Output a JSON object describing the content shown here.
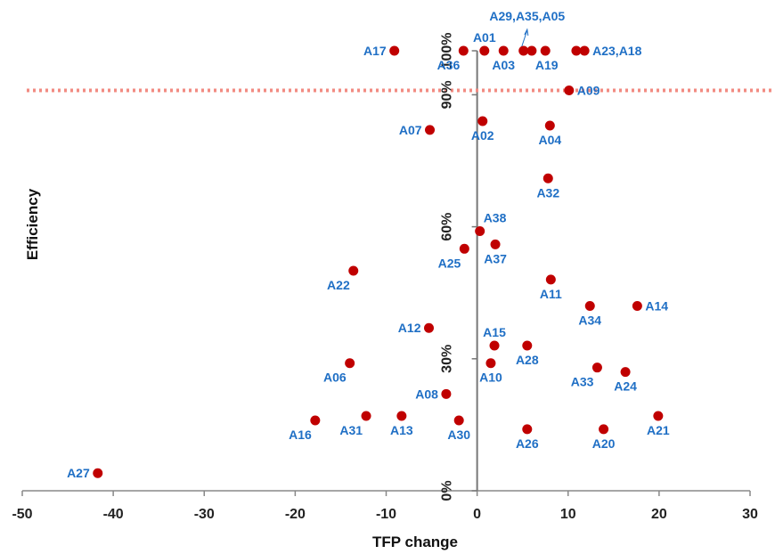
{
  "chart_data": {
    "type": "scatter",
    "xlabel": "TFP change",
    "ylabel": "Efficiency",
    "xlim": [
      -50,
      30
    ],
    "ylim": [
      0,
      100
    ],
    "x_ticks": [
      "-50",
      "-40",
      "-30",
      "-20",
      "-10",
      "0",
      "10",
      "20",
      "30"
    ],
    "y_ticks": [
      "0%",
      "30%",
      "60%",
      "90%",
      "100%"
    ],
    "reference_line": {
      "y": 91,
      "style": "dotted",
      "color": "#f28b82"
    },
    "point_color": "#c00000",
    "label_color": "#1f6fc5",
    "points": [
      {
        "label": "A17",
        "x": -9.1,
        "y": 100,
        "label_pos": "left"
      },
      {
        "label": "A36",
        "x": -1.5,
        "y": 100,
        "label_pos": "below-left"
      },
      {
        "label": "A01",
        "x": 0.8,
        "y": 100,
        "label_pos": "above"
      },
      {
        "label": "A03",
        "x": 2.9,
        "y": 100,
        "label_pos": "below"
      },
      {
        "label": "",
        "x": 5.1,
        "y": 100,
        "label_pos": "none"
      },
      {
        "label": "A19",
        "x": 6.0,
        "y": 100,
        "label_pos": "below-right"
      },
      {
        "label": "",
        "x": 7.5,
        "y": 100,
        "label_pos": "none"
      },
      {
        "label": "",
        "x": 10.9,
        "y": 100,
        "label_pos": "none"
      },
      {
        "label": "A23,A18",
        "x": 11.8,
        "y": 100,
        "label_pos": "right"
      },
      {
        "label": "A09",
        "x": 10.1,
        "y": 91,
        "label_pos": "right"
      },
      {
        "label": "A02",
        "x": 0.6,
        "y": 84,
        "label_pos": "below"
      },
      {
        "label": "A07",
        "x": -5.2,
        "y": 82,
        "label_pos": "left"
      },
      {
        "label": "A04",
        "x": 8.0,
        "y": 83,
        "label_pos": "below"
      },
      {
        "label": "A32",
        "x": 7.8,
        "y": 71,
        "label_pos": "below"
      },
      {
        "label": "A38",
        "x": 0.3,
        "y": 59,
        "label_pos": "above-right"
      },
      {
        "label": "A25",
        "x": -1.4,
        "y": 55,
        "label_pos": "below-left"
      },
      {
        "label": "A37",
        "x": 2.0,
        "y": 56,
        "label_pos": "below"
      },
      {
        "label": "A22",
        "x": -13.6,
        "y": 50,
        "label_pos": "below-left"
      },
      {
        "label": "A11",
        "x": 8.1,
        "y": 48,
        "label_pos": "below"
      },
      {
        "label": "A34",
        "x": 12.4,
        "y": 42,
        "label_pos": "below"
      },
      {
        "label": "A14",
        "x": 17.6,
        "y": 42,
        "label_pos": "right"
      },
      {
        "label": "A12",
        "x": -5.3,
        "y": 37,
        "label_pos": "left"
      },
      {
        "label": "A15",
        "x": 1.9,
        "y": 33,
        "label_pos": "above"
      },
      {
        "label": "A28",
        "x": 5.5,
        "y": 33,
        "label_pos": "below"
      },
      {
        "label": "A06",
        "x": -14.0,
        "y": 29,
        "label_pos": "below-left"
      },
      {
        "label": "A10",
        "x": 1.5,
        "y": 29,
        "label_pos": "below"
      },
      {
        "label": "A33",
        "x": 13.2,
        "y": 28,
        "label_pos": "below-left"
      },
      {
        "label": "A24",
        "x": 16.3,
        "y": 27,
        "label_pos": "below"
      },
      {
        "label": "A08",
        "x": -3.4,
        "y": 22,
        "label_pos": "left"
      },
      {
        "label": "A16",
        "x": -17.8,
        "y": 16,
        "label_pos": "below-left"
      },
      {
        "label": "A31",
        "x": -12.2,
        "y": 17,
        "label_pos": "below-left"
      },
      {
        "label": "A13",
        "x": -8.3,
        "y": 17,
        "label_pos": "below"
      },
      {
        "label": "A30",
        "x": -2.0,
        "y": 16,
        "label_pos": "below"
      },
      {
        "label": "A26",
        "x": 5.5,
        "y": 14,
        "label_pos": "below"
      },
      {
        "label": "A20",
        "x": 13.9,
        "y": 14,
        "label_pos": "below"
      },
      {
        "label": "A21",
        "x": 19.9,
        "y": 17,
        "label_pos": "below"
      },
      {
        "label": "A27",
        "x": -41.7,
        "y": 4,
        "label_pos": "left"
      }
    ],
    "annotation": {
      "label": "A29,A35,A05",
      "x": 5.5,
      "y": 100
    }
  }
}
